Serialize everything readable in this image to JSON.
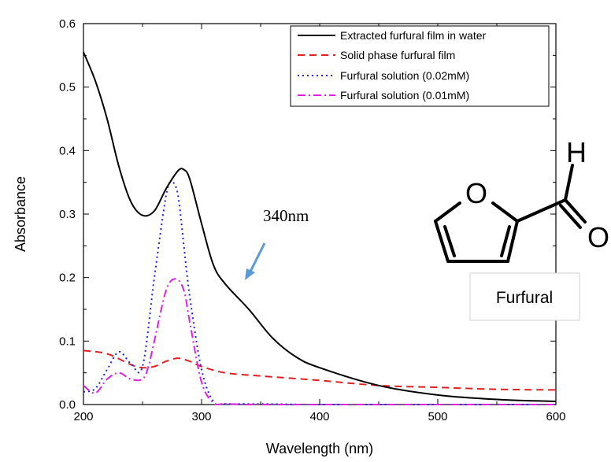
{
  "chart_data": {
    "type": "line",
    "xlabel": "Wavelength (nm)",
    "ylabel": "Absorbance",
    "xlim": [
      200,
      600
    ],
    "ylim": [
      0.0,
      0.6
    ],
    "xticks": [
      200,
      300,
      400,
      500,
      600
    ],
    "xtick_labels": [
      "200",
      "300",
      "400",
      "500",
      "600"
    ],
    "yticks": [
      0.0,
      0.1,
      0.2,
      0.3,
      0.4,
      0.5,
      0.6
    ],
    "ytick_labels": [
      "0.0",
      "0.1",
      "0.2",
      "0.3",
      "0.4",
      "0.5",
      "0.6"
    ],
    "grid": false,
    "legend_position": "top-right",
    "series": [
      {
        "name": "Extracted furfural film in water",
        "color": "#000000",
        "dash": "solid",
        "x": [
          200,
          210,
          220,
          230,
          240,
          250,
          260,
          270,
          280,
          285,
          290,
          300,
          310,
          320,
          340,
          360,
          380,
          400,
          450,
          500,
          550,
          600
        ],
        "y": [
          0.555,
          0.51,
          0.45,
          0.375,
          0.32,
          0.298,
          0.305,
          0.34,
          0.368,
          0.37,
          0.355,
          0.285,
          0.22,
          0.19,
          0.15,
          0.105,
          0.075,
          0.058,
          0.03,
          0.015,
          0.008,
          0.005
        ]
      },
      {
        "name": "Solid phase furfural film",
        "color": "#e02020",
        "dash": "dashed",
        "x": [
          200,
          220,
          240,
          250,
          260,
          270,
          280,
          290,
          300,
          320,
          350,
          400,
          450,
          500,
          550,
          600
        ],
        "y": [
          0.085,
          0.08,
          0.063,
          0.058,
          0.06,
          0.068,
          0.073,
          0.068,
          0.06,
          0.05,
          0.045,
          0.038,
          0.03,
          0.027,
          0.024,
          0.023
        ]
      },
      {
        "name": "Furfural solution (0.02mM)",
        "color": "#2020e0",
        "dash": "dotted",
        "x": [
          200,
          210,
          220,
          230,
          240,
          250,
          260,
          270,
          275,
          280,
          285,
          290,
          300,
          310,
          320,
          350,
          400,
          500,
          600
        ],
        "y": [
          0.02,
          0.025,
          0.055,
          0.083,
          0.065,
          0.06,
          0.2,
          0.33,
          0.35,
          0.33,
          0.25,
          0.17,
          0.055,
          0.005,
          0.001,
          0.001,
          0.0,
          0.0,
          0.0
        ]
      },
      {
        "name": "Furfural solution (0.01mM)",
        "color": "#e020e0",
        "dash": "dashdot",
        "x": [
          200,
          210,
          220,
          230,
          240,
          250,
          255,
          260,
          270,
          278,
          285,
          290,
          300,
          310,
          320,
          350,
          400,
          500,
          600
        ],
        "y": [
          0.03,
          0.018,
          0.04,
          0.05,
          0.04,
          0.04,
          0.06,
          0.1,
          0.18,
          0.198,
          0.18,
          0.13,
          0.035,
          0.003,
          0.001,
          0.0,
          0.0,
          0.0,
          0.0
        ]
      }
    ],
    "annotations": [
      {
        "text": "340nm",
        "arrow_color": "#5b9bd5"
      }
    ]
  },
  "molecule": {
    "atom_oxygen_ring": "O",
    "atom_hydrogen": "H",
    "atom_oxygen_carbonyl": "O",
    "label": "Furfural"
  }
}
